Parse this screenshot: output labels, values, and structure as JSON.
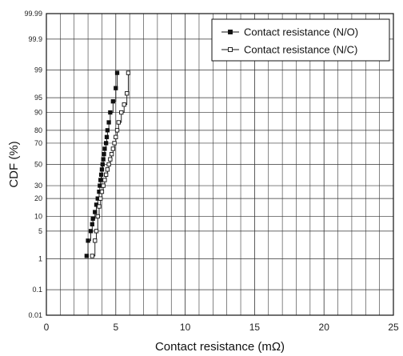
{
  "chart_data": {
    "type": "scatter",
    "xlabel": "Contact resistance  (mΩ)",
    "ylabel": "CDF (%)",
    "xlim": [
      0,
      25
    ],
    "x_ticks": [
      0,
      5,
      10,
      15,
      20,
      25
    ],
    "y_scale": "probability (normal)",
    "y_ticks": [
      0.01,
      0.1,
      1,
      5,
      10,
      20,
      30,
      50,
      70,
      80,
      90,
      95,
      99,
      99.9,
      99.99
    ],
    "y_tick_labels": [
      "0.01",
      "0.1",
      "1",
      "5",
      "10",
      "20",
      "30",
      "50",
      "70",
      "80",
      "90",
      "95",
      "99",
      "99.9",
      "99.99"
    ],
    "grid": true,
    "legend_position": "top-right",
    "series": [
      {
        "name": "Contact resistance (N/O)",
        "marker": "filled-square",
        "color": "#111111",
        "points": [
          [
            2.9,
            1.2
          ],
          [
            3.0,
            3
          ],
          [
            3.2,
            5
          ],
          [
            3.3,
            7
          ],
          [
            3.35,
            9
          ],
          [
            3.5,
            12
          ],
          [
            3.6,
            16
          ],
          [
            3.7,
            20
          ],
          [
            3.8,
            25
          ],
          [
            3.85,
            30
          ],
          [
            3.9,
            35
          ],
          [
            3.95,
            40
          ],
          [
            4.0,
            45
          ],
          [
            4.05,
            50
          ],
          [
            4.1,
            55
          ],
          [
            4.15,
            60
          ],
          [
            4.2,
            65
          ],
          [
            4.3,
            70
          ],
          [
            4.35,
            75
          ],
          [
            4.4,
            80
          ],
          [
            4.5,
            85
          ],
          [
            4.6,
            90
          ],
          [
            4.8,
            94
          ],
          [
            5.0,
            97
          ],
          [
            5.1,
            98.8
          ]
        ]
      },
      {
        "name": "Contact resistance (N/C)",
        "marker": "open-square",
        "color": "#111111",
        "points": [
          [
            3.3,
            1.2
          ],
          [
            3.5,
            3
          ],
          [
            3.6,
            5
          ],
          [
            3.7,
            10
          ],
          [
            3.8,
            15
          ],
          [
            3.9,
            20
          ],
          [
            4.0,
            25
          ],
          [
            4.1,
            30
          ],
          [
            4.2,
            35
          ],
          [
            4.3,
            40
          ],
          [
            4.4,
            45
          ],
          [
            4.5,
            50
          ],
          [
            4.6,
            55
          ],
          [
            4.7,
            60
          ],
          [
            4.8,
            65
          ],
          [
            4.9,
            70
          ],
          [
            5.0,
            75
          ],
          [
            5.1,
            80
          ],
          [
            5.2,
            85
          ],
          [
            5.4,
            90
          ],
          [
            5.6,
            93
          ],
          [
            5.8,
            96
          ],
          [
            5.9,
            98.8
          ]
        ]
      }
    ]
  }
}
